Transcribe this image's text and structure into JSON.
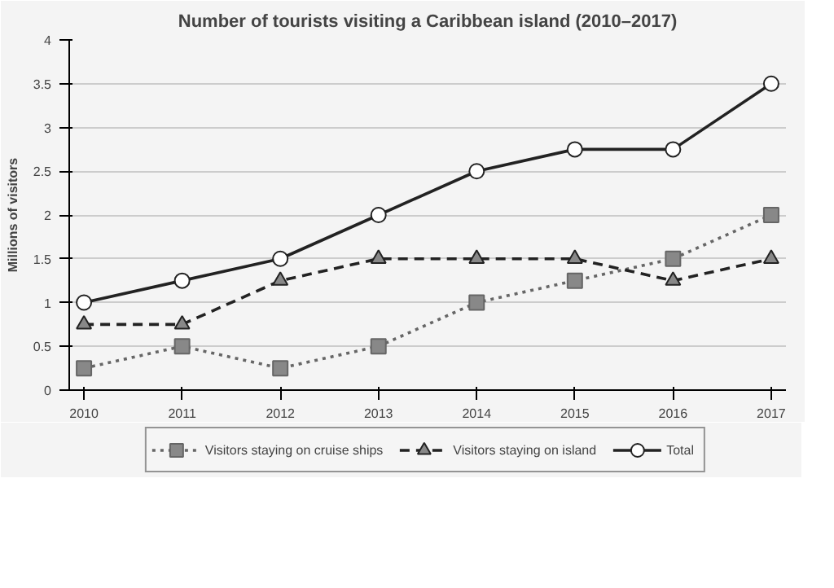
{
  "chart_data": {
    "type": "line",
    "title": "Number of tourists visiting a Caribbean island (2010–2017)",
    "ylabel": "Millions of visitors",
    "categories": [
      "2010",
      "2011",
      "2012",
      "2013",
      "2014",
      "2015",
      "2016",
      "2017"
    ],
    "series": [
      {
        "name": "Visitors staying on cruise ships",
        "color": "#666666",
        "marker": "square",
        "line_style": "dotted",
        "values": [
          0.25,
          0.5,
          0.25,
          0.5,
          1,
          1.25,
          1.5,
          2
        ]
      },
      {
        "name": "Visitors staying on island",
        "color": "#222222",
        "marker": "triangle",
        "line_style": "dashed",
        "values": [
          0.75,
          0.75,
          1.25,
          1.5,
          1.5,
          1.5,
          1.25,
          1.5
        ]
      },
      {
        "name": "Total",
        "color": "#222222",
        "marker": "circle",
        "line_style": "solid",
        "values": [
          1,
          1.25,
          1.5,
          2,
          2.5,
          2.75,
          2.75,
          3.5
        ]
      }
    ],
    "ylim": [
      0,
      4
    ],
    "yticks": [
      0,
      0.5,
      1,
      1.5,
      2,
      2.5,
      3,
      3.5,
      4
    ],
    "grid": "y",
    "legend": "bottom"
  }
}
